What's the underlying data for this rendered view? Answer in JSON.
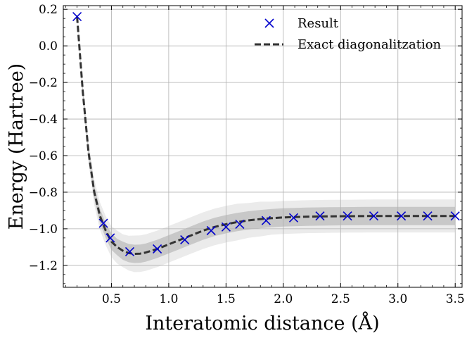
{
  "chart_data": {
    "type": "line",
    "xlabel": "Interatomic distance (Å)",
    "ylabel": "Energy (Hartree)",
    "xlim": [
      0.08,
      3.56
    ],
    "ylim": [
      -1.32,
      0.22
    ],
    "xticks": [
      0.5,
      1.0,
      1.5,
      2.0,
      2.5,
      3.0,
      3.5
    ],
    "yticks": [
      0.2,
      0.0,
      -0.2,
      -0.4,
      -0.6,
      -0.8,
      -1.0,
      -1.2
    ],
    "grid": true,
    "legend_position": "top-right",
    "legend": [
      "Result",
      "Exact diagonalitzation"
    ],
    "series": [
      {
        "name": "Result",
        "marker": "x",
        "color": "#0000cc",
        "x": [
          0.2,
          0.43,
          0.49,
          0.66,
          0.9,
          1.14,
          1.37,
          1.5,
          1.62,
          1.85,
          2.09,
          2.32,
          2.56,
          2.79,
          3.03,
          3.26,
          3.5
        ],
        "y": [
          0.16,
          -0.97,
          -1.05,
          -1.125,
          -1.11,
          -1.06,
          -1.01,
          -0.99,
          -0.975,
          -0.955,
          -0.94,
          -0.93,
          -0.93,
          -0.93,
          -0.93,
          -0.93,
          -0.93
        ]
      },
      {
        "name": "Exact diagonalitzation",
        "line": "dashed",
        "color": "#333333",
        "x": [
          0.2,
          0.25,
          0.3,
          0.35,
          0.4,
          0.45,
          0.5,
          0.55,
          0.6,
          0.65,
          0.7,
          0.75,
          0.8,
          0.9,
          1.0,
          1.1,
          1.2,
          1.3,
          1.4,
          1.5,
          1.6,
          1.7,
          1.8,
          1.9,
          2.0,
          2.2,
          2.4,
          2.6,
          2.8,
          3.0,
          3.2,
          3.5
        ],
        "y": [
          0.16,
          -0.25,
          -0.58,
          -0.8,
          -0.93,
          -1.01,
          -1.07,
          -1.1,
          -1.12,
          -1.133,
          -1.137,
          -1.136,
          -1.13,
          -1.11,
          -1.085,
          -1.06,
          -1.035,
          -1.01,
          -0.99,
          -0.975,
          -0.963,
          -0.954,
          -0.947,
          -0.942,
          -0.938,
          -0.934,
          -0.932,
          -0.931,
          -0.93,
          -0.93,
          -0.93,
          -0.93
        ]
      }
    ],
    "bands": [
      {
        "name": "outer-band",
        "half_width": [
          0,
          0.04,
          0.06,
          0.07,
          0.075,
          0.08,
          0.085,
          0.09,
          0.09,
          0.095,
          0.1,
          0.1,
          0.1,
          0.1,
          0.1,
          0.1,
          0.1,
          0.1,
          0.1,
          0.1,
          0.1,
          0.095,
          0.095,
          0.09,
          0.09,
          0.09,
          0.09,
          0.09,
          0.09,
          0.09,
          0.09,
          0.09
        ],
        "color": "#ebebeb"
      },
      {
        "name": "inner-band",
        "half_width": [
          0,
          0.02,
          0.03,
          0.035,
          0.04,
          0.04,
          0.045,
          0.045,
          0.05,
          0.05,
          0.05,
          0.05,
          0.05,
          0.05,
          0.05,
          0.05,
          0.05,
          0.05,
          0.05,
          0.05,
          0.05,
          0.05,
          0.05,
          0.05,
          0.05,
          0.05,
          0.05,
          0.05,
          0.05,
          0.05,
          0.05,
          0.05
        ],
        "color": "#c8c8c8"
      }
    ]
  }
}
